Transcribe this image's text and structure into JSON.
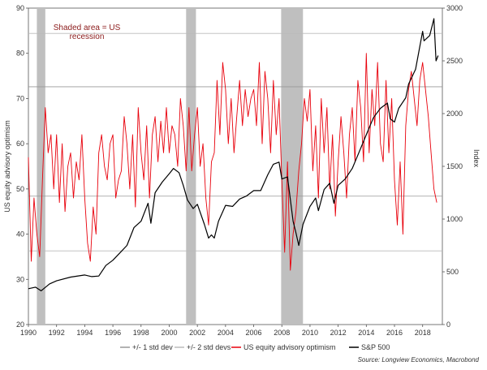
{
  "chart_data": {
    "type": "line",
    "annotation": [
      "Shaded area = US",
      "recession"
    ],
    "left_axis_label": "US equity advisory optimism",
    "right_axis_label": "Index",
    "xlim": [
      1990,
      2019.4
    ],
    "x_ticks": [
      "1990",
      "1992",
      "1994",
      "1996",
      "1998",
      "2000",
      "2002",
      "2004",
      "2006",
      "2008",
      "2010",
      "2012",
      "2014",
      "2016",
      "2018"
    ],
    "ylim_left": [
      20,
      90
    ],
    "y_ticks_left": [
      "20",
      "30",
      "40",
      "50",
      "60",
      "70",
      "80",
      "90"
    ],
    "ylim_right": [
      0,
      3000
    ],
    "y_ticks_right": [
      "0",
      "500",
      "1000",
      "1500",
      "2000",
      "2500",
      "3000"
    ],
    "recessions": [
      [
        1990.6,
        1991.2
      ],
      [
        2001.2,
        2001.9
      ],
      [
        2007.95,
        2009.5
      ]
    ],
    "reference_lines": {
      "std1": [
        48.4,
        72.6
      ],
      "std2": [
        36.3,
        84.4
      ]
    },
    "legend": [
      {
        "label": "+/- 1 std dev",
        "color": "#999999"
      },
      {
        "label": "+/- 2 std devs",
        "color": "#bbbbbb"
      },
      {
        "label": "US equity advisory optimism",
        "color": "#e8000b"
      },
      {
        "label": "S&P 500",
        "color": "#000000"
      }
    ],
    "source": "Source:  Longview Economics,  Macrobond",
    "series": [
      {
        "name": "US equity advisory optimism",
        "axis": "left",
        "color": "#e8000b",
        "x": [
          1990.0,
          1990.2,
          1990.4,
          1990.6,
          1990.8,
          1991.0,
          1991.2,
          1991.4,
          1991.6,
          1991.8,
          1992.0,
          1992.2,
          1992.4,
          1992.6,
          1992.8,
          1993.0,
          1993.2,
          1993.4,
          1993.6,
          1993.8,
          1994.0,
          1994.2,
          1994.4,
          1994.6,
          1994.8,
          1995.0,
          1995.2,
          1995.4,
          1995.6,
          1995.8,
          1996.0,
          1996.2,
          1996.4,
          1996.6,
          1996.8,
          1997.0,
          1997.2,
          1997.4,
          1997.6,
          1997.8,
          1998.0,
          1998.2,
          1998.4,
          1998.6,
          1998.8,
          1999.0,
          1999.2,
          1999.4,
          1999.6,
          1999.8,
          2000.0,
          2000.2,
          2000.4,
          2000.6,
          2000.8,
          2001.0,
          2001.2,
          2001.4,
          2001.6,
          2001.8,
          2002.0,
          2002.2,
          2002.4,
          2002.6,
          2002.8,
          2003.0,
          2003.2,
          2003.4,
          2003.6,
          2003.8,
          2004.0,
          2004.2,
          2004.4,
          2004.6,
          2004.8,
          2005.0,
          2005.2,
          2005.4,
          2005.6,
          2005.8,
          2006.0,
          2006.2,
          2006.4,
          2006.6,
          2006.8,
          2007.0,
          2007.2,
          2007.4,
          2007.6,
          2007.8,
          2008.0,
          2008.2,
          2008.4,
          2008.6,
          2008.8,
          2009.0,
          2009.2,
          2009.4,
          2009.6,
          2009.8,
          2010.0,
          2010.2,
          2010.4,
          2010.6,
          2010.8,
          2011.0,
          2011.2,
          2011.4,
          2011.6,
          2011.8,
          2012.0,
          2012.2,
          2012.4,
          2012.6,
          2012.8,
          2013.0,
          2013.2,
          2013.4,
          2013.6,
          2013.8,
          2014.0,
          2014.2,
          2014.4,
          2014.6,
          2014.8,
          2015.0,
          2015.2,
          2015.4,
          2015.6,
          2015.8,
          2016.0,
          2016.2,
          2016.4,
          2016.6,
          2016.8,
          2017.0,
          2017.2,
          2017.4,
          2017.6,
          2017.8,
          2018.0,
          2018.2,
          2018.4,
          2018.6,
          2018.8,
          2019.0
        ],
        "y": [
          57,
          34,
          48,
          40,
          35,
          52,
          68,
          58,
          62,
          50,
          62,
          47,
          60,
          45,
          55,
          58,
          48,
          56,
          52,
          62,
          48,
          38,
          34,
          46,
          40,
          58,
          62,
          55,
          52,
          60,
          62,
          48,
          52,
          54,
          66,
          60,
          50,
          62,
          46,
          68,
          58,
          52,
          64,
          48,
          62,
          66,
          56,
          65,
          58,
          68,
          58,
          64,
          62,
          55,
          70,
          64,
          54,
          68,
          54,
          62,
          68,
          55,
          60,
          48,
          42,
          56,
          58,
          74,
          62,
          78,
          72,
          60,
          70,
          58,
          66,
          74,
          64,
          72,
          66,
          70,
          72,
          64,
          78,
          60,
          76,
          70,
          58,
          74,
          62,
          70,
          52,
          36,
          56,
          32,
          40,
          45,
          54,
          60,
          70,
          65,
          72,
          54,
          64,
          48,
          70,
          58,
          68,
          50,
          62,
          44,
          56,
          66,
          58,
          48,
          62,
          68,
          56,
          74,
          68,
          56,
          80,
          58,
          72,
          64,
          78,
          60,
          56,
          74,
          58,
          70,
          52,
          42,
          56,
          40,
          64,
          72,
          76,
          70,
          64,
          74,
          78,
          72,
          66,
          58,
          50,
          47
        ]
      },
      {
        "name": "S&P 500",
        "axis": "right",
        "color": "#000000",
        "x": [
          1990.0,
          1990.5,
          1990.9,
          1991.0,
          1991.5,
          1992.0,
          1993.0,
          1994.0,
          1994.5,
          1995.0,
          1995.5,
          1996.0,
          1996.5,
          1997.0,
          1997.5,
          1998.0,
          1998.5,
          1998.7,
          1999.0,
          1999.5,
          2000.0,
          2000.3,
          2000.7,
          2001.0,
          2001.3,
          2001.7,
          2002.0,
          2002.5,
          2002.8,
          2003.0,
          2003.2,
          2003.5,
          2004.0,
          2004.5,
          2005.0,
          2005.5,
          2006.0,
          2006.5,
          2007.0,
          2007.4,
          2007.8,
          2008.0,
          2008.4,
          2008.8,
          2009.0,
          2009.2,
          2009.5,
          2010.0,
          2010.4,
          2010.6,
          2011.0,
          2011.4,
          2011.7,
          2012.0,
          2012.5,
          2013.0,
          2013.5,
          2014.0,
          2014.5,
          2015.0,
          2015.5,
          2015.7,
          2016.0,
          2016.3,
          2016.8,
          2017.0,
          2017.5,
          2018.0,
          2018.1,
          2018.5,
          2018.8,
          2018.95,
          2019.1
        ],
        "y": [
          340,
          355,
          320,
          330,
          385,
          415,
          450,
          470,
          455,
          460,
          560,
          610,
          680,
          750,
          920,
          980,
          1150,
          960,
          1250,
          1350,
          1430,
          1480,
          1440,
          1320,
          1180,
          1100,
          1140,
          950,
          820,
          850,
          820,
          980,
          1130,
          1120,
          1190,
          1220,
          1270,
          1270,
          1420,
          1520,
          1540,
          1380,
          1400,
          980,
          870,
          750,
          950,
          1120,
          1200,
          1080,
          1280,
          1340,
          1150,
          1320,
          1380,
          1480,
          1640,
          1800,
          1960,
          2050,
          2100,
          1950,
          1920,
          2050,
          2150,
          2280,
          2420,
          2780,
          2690,
          2740,
          2900,
          2500,
          2550
        ]
      }
    ]
  }
}
